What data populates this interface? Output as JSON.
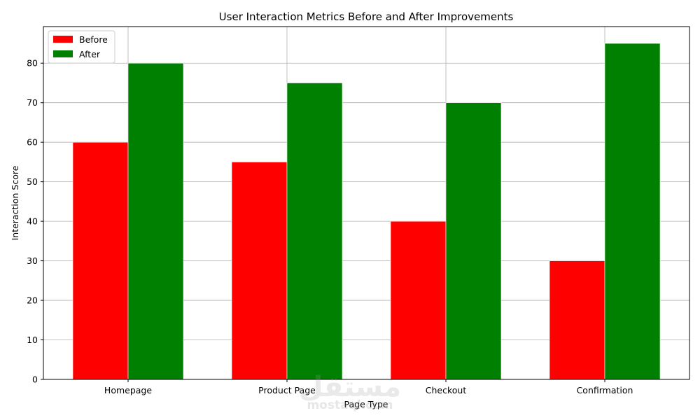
{
  "chart_data": {
    "type": "bar",
    "title": "User Interaction Metrics Before and After Improvements",
    "xlabel": "Page Type",
    "ylabel": "Interaction Score",
    "categories": [
      "Homepage",
      "Product Page",
      "Checkout",
      "Confirmation"
    ],
    "series": [
      {
        "name": "Before",
        "color": "#ff0000",
        "values": [
          60,
          55,
          40,
          30
        ]
      },
      {
        "name": "After",
        "color": "#008000",
        "values": [
          80,
          75,
          70,
          85
        ]
      }
    ],
    "ylim": [
      0,
      89.25
    ],
    "yticks": [
      0,
      10,
      20,
      30,
      40,
      50,
      60,
      70,
      80
    ],
    "grid": true,
    "legend_position": "top-left"
  },
  "watermark": {
    "text_ar": "مستقل",
    "text_en": "mostaql.com"
  }
}
